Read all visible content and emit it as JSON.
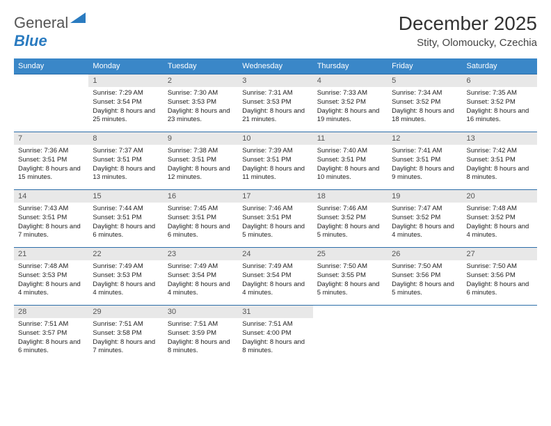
{
  "logo": {
    "text1": "General",
    "text2": "Blue",
    "color1": "#555555",
    "color2": "#2a7bc0",
    "triangle_fill": "#2a7bc0"
  },
  "title": "December 2025",
  "location": "Stity, Olomoucky, Czechia",
  "header_bg": "#3a87c8",
  "header_fg": "#ffffff",
  "daynum_bg": "#e8e8e8",
  "rule_color": "#2a6ca8",
  "weekdays": [
    "Sunday",
    "Monday",
    "Tuesday",
    "Wednesday",
    "Thursday",
    "Friday",
    "Saturday"
  ],
  "weeks": [
    [
      {
        "n": "",
        "sr": "",
        "ss": "",
        "dl": ""
      },
      {
        "n": "1",
        "sr": "7:29 AM",
        "ss": "3:54 PM",
        "dl": "8 hours and 25 minutes."
      },
      {
        "n": "2",
        "sr": "7:30 AM",
        "ss": "3:53 PM",
        "dl": "8 hours and 23 minutes."
      },
      {
        "n": "3",
        "sr": "7:31 AM",
        "ss": "3:53 PM",
        "dl": "8 hours and 21 minutes."
      },
      {
        "n": "4",
        "sr": "7:33 AM",
        "ss": "3:52 PM",
        "dl": "8 hours and 19 minutes."
      },
      {
        "n": "5",
        "sr": "7:34 AM",
        "ss": "3:52 PM",
        "dl": "8 hours and 18 minutes."
      },
      {
        "n": "6",
        "sr": "7:35 AM",
        "ss": "3:52 PM",
        "dl": "8 hours and 16 minutes."
      }
    ],
    [
      {
        "n": "7",
        "sr": "7:36 AM",
        "ss": "3:51 PM",
        "dl": "8 hours and 15 minutes."
      },
      {
        "n": "8",
        "sr": "7:37 AM",
        "ss": "3:51 PM",
        "dl": "8 hours and 13 minutes."
      },
      {
        "n": "9",
        "sr": "7:38 AM",
        "ss": "3:51 PM",
        "dl": "8 hours and 12 minutes."
      },
      {
        "n": "10",
        "sr": "7:39 AM",
        "ss": "3:51 PM",
        "dl": "8 hours and 11 minutes."
      },
      {
        "n": "11",
        "sr": "7:40 AM",
        "ss": "3:51 PM",
        "dl": "8 hours and 10 minutes."
      },
      {
        "n": "12",
        "sr": "7:41 AM",
        "ss": "3:51 PM",
        "dl": "8 hours and 9 minutes."
      },
      {
        "n": "13",
        "sr": "7:42 AM",
        "ss": "3:51 PM",
        "dl": "8 hours and 8 minutes."
      }
    ],
    [
      {
        "n": "14",
        "sr": "7:43 AM",
        "ss": "3:51 PM",
        "dl": "8 hours and 7 minutes."
      },
      {
        "n": "15",
        "sr": "7:44 AM",
        "ss": "3:51 PM",
        "dl": "8 hours and 6 minutes."
      },
      {
        "n": "16",
        "sr": "7:45 AM",
        "ss": "3:51 PM",
        "dl": "8 hours and 6 minutes."
      },
      {
        "n": "17",
        "sr": "7:46 AM",
        "ss": "3:51 PM",
        "dl": "8 hours and 5 minutes."
      },
      {
        "n": "18",
        "sr": "7:46 AM",
        "ss": "3:52 PM",
        "dl": "8 hours and 5 minutes."
      },
      {
        "n": "19",
        "sr": "7:47 AM",
        "ss": "3:52 PM",
        "dl": "8 hours and 4 minutes."
      },
      {
        "n": "20",
        "sr": "7:48 AM",
        "ss": "3:52 PM",
        "dl": "8 hours and 4 minutes."
      }
    ],
    [
      {
        "n": "21",
        "sr": "7:48 AM",
        "ss": "3:53 PM",
        "dl": "8 hours and 4 minutes."
      },
      {
        "n": "22",
        "sr": "7:49 AM",
        "ss": "3:53 PM",
        "dl": "8 hours and 4 minutes."
      },
      {
        "n": "23",
        "sr": "7:49 AM",
        "ss": "3:54 PM",
        "dl": "8 hours and 4 minutes."
      },
      {
        "n": "24",
        "sr": "7:49 AM",
        "ss": "3:54 PM",
        "dl": "8 hours and 4 minutes."
      },
      {
        "n": "25",
        "sr": "7:50 AM",
        "ss": "3:55 PM",
        "dl": "8 hours and 5 minutes."
      },
      {
        "n": "26",
        "sr": "7:50 AM",
        "ss": "3:56 PM",
        "dl": "8 hours and 5 minutes."
      },
      {
        "n": "27",
        "sr": "7:50 AM",
        "ss": "3:56 PM",
        "dl": "8 hours and 6 minutes."
      }
    ],
    [
      {
        "n": "28",
        "sr": "7:51 AM",
        "ss": "3:57 PM",
        "dl": "8 hours and 6 minutes."
      },
      {
        "n": "29",
        "sr": "7:51 AM",
        "ss": "3:58 PM",
        "dl": "8 hours and 7 minutes."
      },
      {
        "n": "30",
        "sr": "7:51 AM",
        "ss": "3:59 PM",
        "dl": "8 hours and 8 minutes."
      },
      {
        "n": "31",
        "sr": "7:51 AM",
        "ss": "4:00 PM",
        "dl": "8 hours and 8 minutes."
      },
      {
        "n": "",
        "sr": "",
        "ss": "",
        "dl": ""
      },
      {
        "n": "",
        "sr": "",
        "ss": "",
        "dl": ""
      },
      {
        "n": "",
        "sr": "",
        "ss": "",
        "dl": ""
      }
    ]
  ],
  "labels": {
    "sunrise": "Sunrise:",
    "sunset": "Sunset:",
    "daylight": "Daylight:"
  }
}
